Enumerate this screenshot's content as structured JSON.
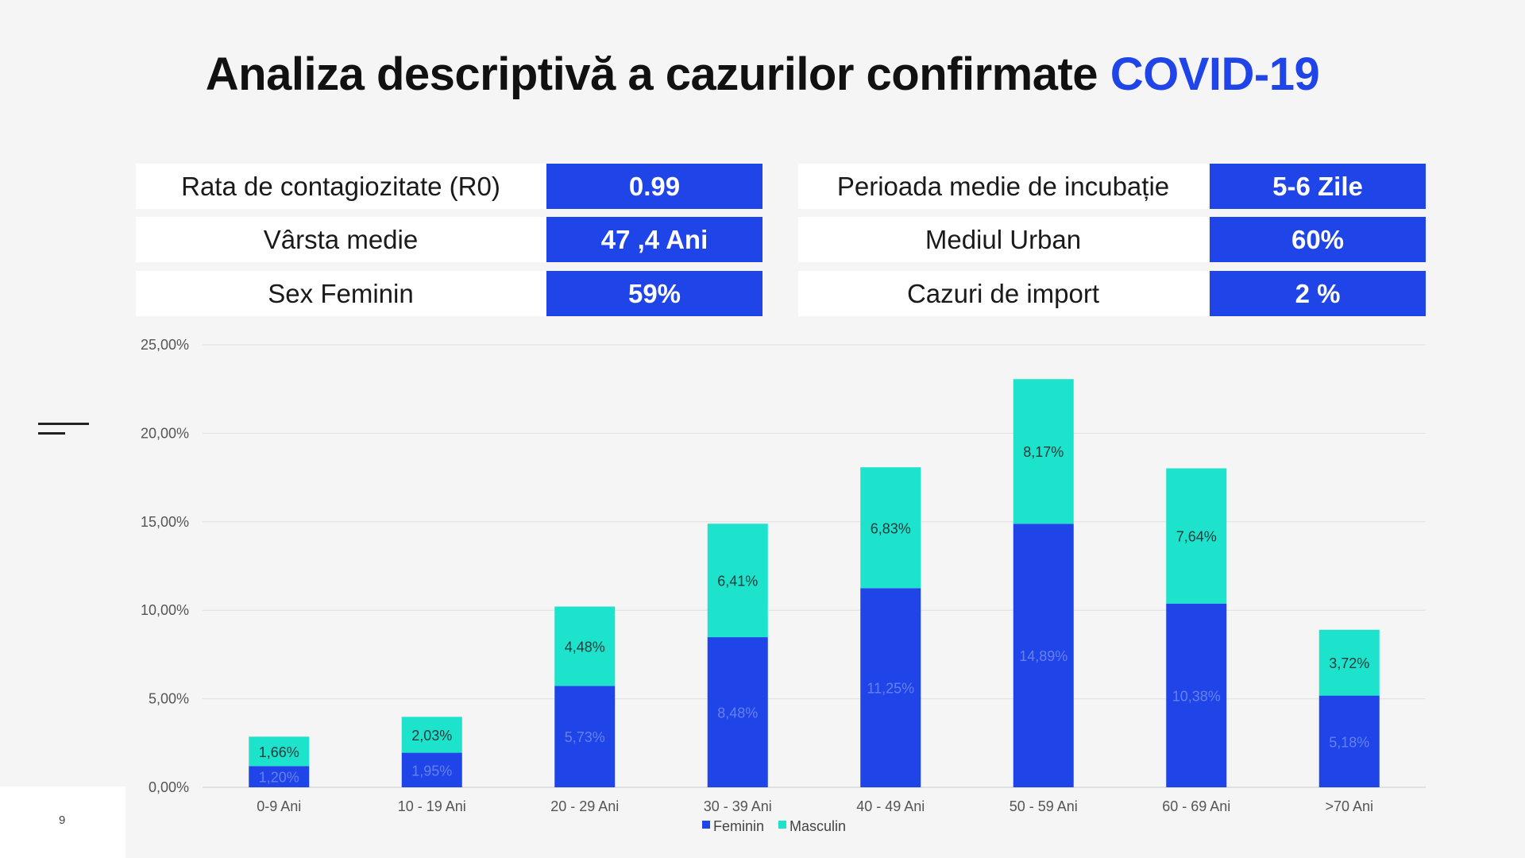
{
  "title": {
    "main": "Analiza descriptivă a cazurilor confirmate ",
    "accent": "COVID-19"
  },
  "stats_left": [
    {
      "label": "Rata de contagiozitate (R0)",
      "value": "0.99"
    },
    {
      "label": "Vârsta medie",
      "value": "47 ,4 Ani"
    },
    {
      "label": "Sex Feminin",
      "value": "59%"
    }
  ],
  "stats_right": [
    {
      "label": "Perioada medie de incubație",
      "value": "5-6 Zile"
    },
    {
      "label": "Mediul Urban",
      "value": "60%"
    },
    {
      "label": "Cazuri de import",
      "value": "2 %"
    }
  ],
  "page_number": "9",
  "colors": {
    "accent": "#1f44e8",
    "feminin": "#1f44e8",
    "masculin": "#1de3cc"
  },
  "chart_data": {
    "type": "bar",
    "stacked": true,
    "categories": [
      "0-9 Ani",
      "10 - 19 Ani",
      "20 - 29 Ani",
      "30 - 39 Ani",
      "40 - 49 Ani",
      "50 - 59 Ani",
      "60 - 69 Ani",
      ">70 Ani"
    ],
    "series": [
      {
        "name": "Feminin",
        "color": "#1f44e8",
        "values": [
          1.2,
          1.95,
          5.73,
          8.48,
          11.25,
          14.89,
          10.38,
          5.18
        ],
        "labels": [
          "1,20%",
          "1,95%",
          "5,73%",
          "8,48%",
          "11,25%",
          "14,89%",
          "10,38%",
          "5,18%"
        ]
      },
      {
        "name": "Masculin",
        "color": "#1de3cc",
        "values": [
          1.66,
          2.03,
          4.48,
          6.41,
          6.83,
          8.17,
          7.64,
          3.72
        ],
        "labels": [
          "1,66%",
          "2,03%",
          "4,48%",
          "6,41%",
          "6,83%",
          "8,17%",
          "7,64%",
          "3,72%"
        ]
      }
    ],
    "y_ticks": [
      0,
      5,
      10,
      15,
      20,
      25
    ],
    "y_tick_labels": [
      "0,00%",
      "5,00%",
      "10,00%",
      "15,00%",
      "20,00%",
      "25,00%"
    ],
    "ylim": [
      0,
      25
    ],
    "grid": true,
    "legend_position": "bottom"
  }
}
